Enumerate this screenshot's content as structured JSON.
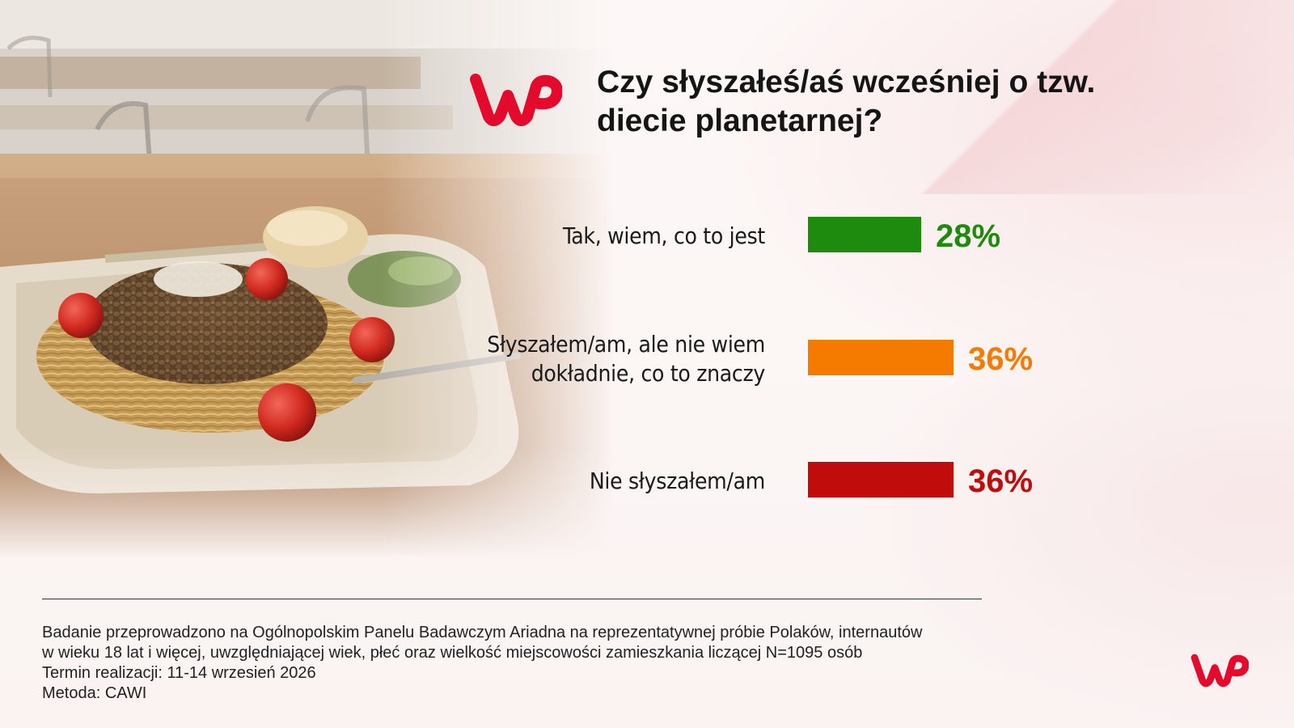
{
  "title": "Czy słyszałeś/aś wcześniej o tzw. diecie planetarnej?",
  "chart_data": {
    "type": "bar",
    "orientation": "horizontal",
    "title": "Czy słyszałeś/aś wcześniej o tzw. diecie planetarnej?",
    "categories": [
      [
        "Tak, wiem, co to jest"
      ],
      [
        "Słyszałem/am, ale nie wiem",
        "dokładnie, co to znaczy"
      ],
      [
        "Nie słyszałem/am"
      ]
    ],
    "values": [
      28,
      36,
      36
    ],
    "value_labels": [
      "28%",
      "36%",
      "36%"
    ],
    "unit": "%",
    "colors": [
      "#1e8a0e",
      "#f47a00",
      "#c10c0c"
    ],
    "xlim": [
      0,
      100
    ],
    "grid": false,
    "legend": "none"
  },
  "footnote": {
    "lines": [
      "Badanie przeprowadzono na Ogólnopolskim Panelu Badawczym Ariadna na reprezentatywnej próbie Polaków, internautów",
      "w wieku 18 lat i więcej, uwzględniającej wiek, płeć oraz wielkość miejscowości zamieszkania liczącej N=1095 osób",
      "Termin realizacji: 11-14 wrzesień 2026",
      "Metoda: CAWI"
    ]
  },
  "logo": {
    "brand": "wp-logo",
    "color": "#e30a2b"
  },
  "background": {
    "image": "spaghetti-lentils-tray-photo"
  }
}
